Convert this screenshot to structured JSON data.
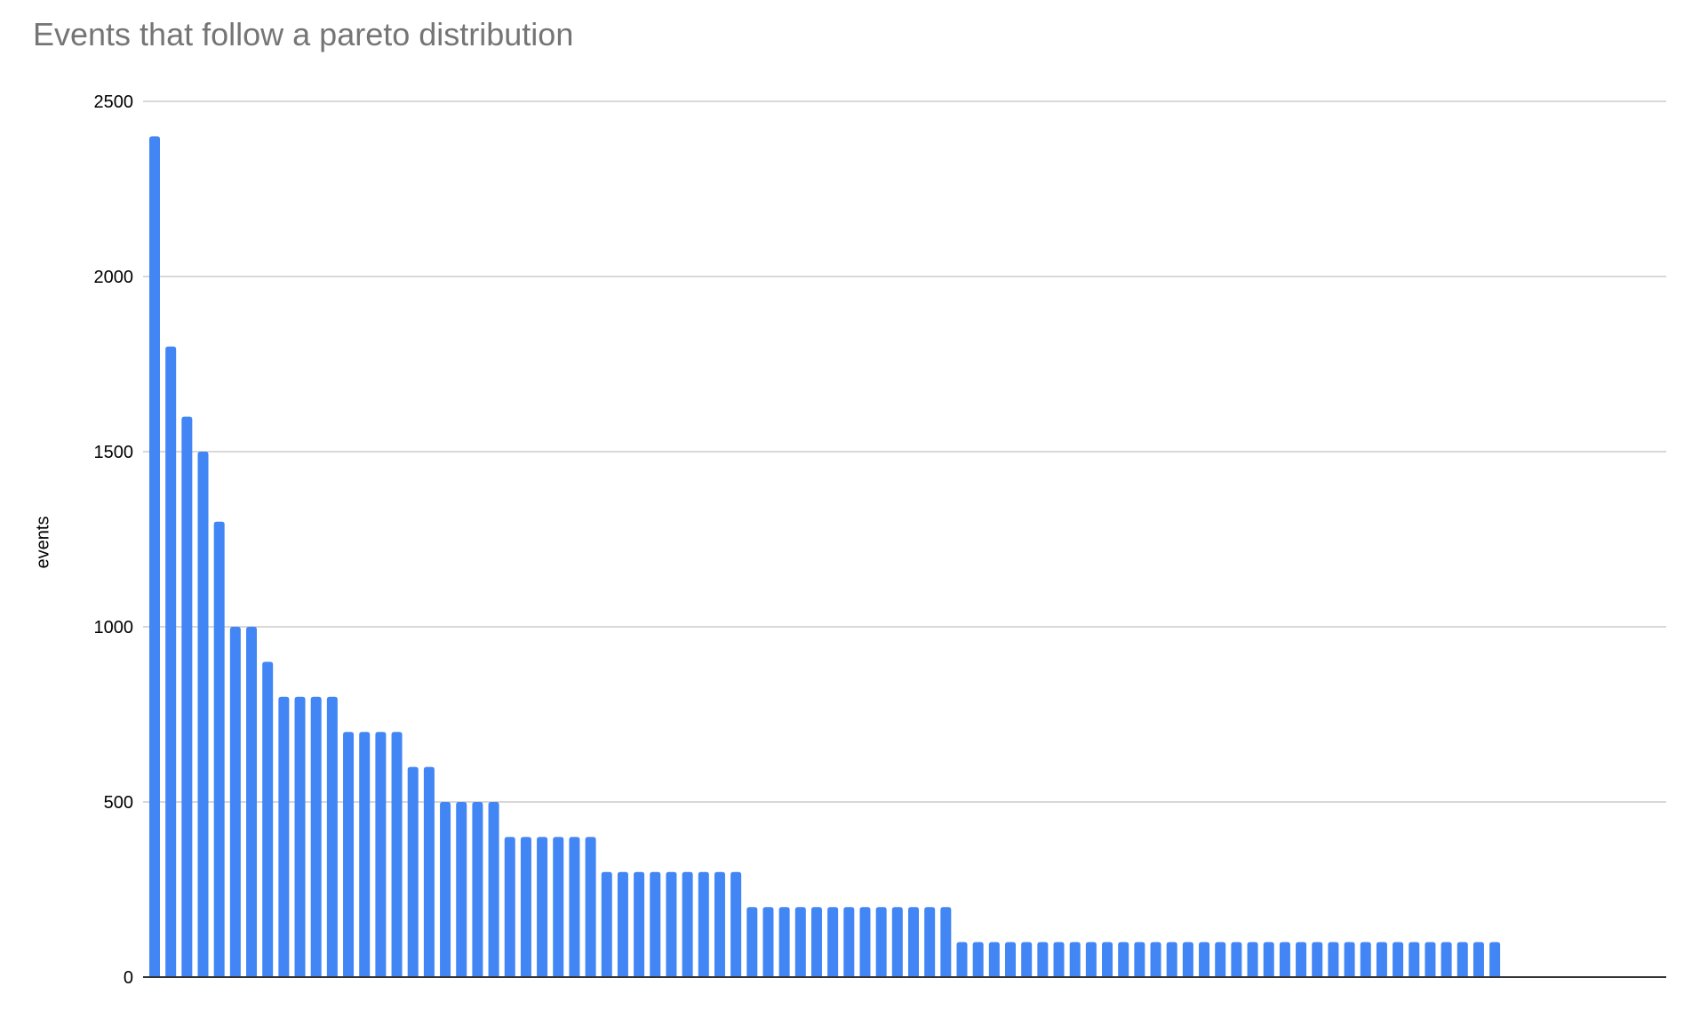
{
  "chart_data": {
    "type": "bar",
    "title": "Events that follow a pareto distribution",
    "xlabel": "",
    "ylabel": "events",
    "ylim": [
      0,
      2500
    ],
    "yticks": [
      "0",
      "500",
      "1000",
      "1500",
      "2000",
      "2500"
    ],
    "grid": true,
    "legend": "none",
    "bar_color": "#4285f4",
    "values": [
      2400,
      1800,
      1600,
      1500,
      1300,
      1000,
      1000,
      900,
      800,
      800,
      800,
      800,
      700,
      700,
      700,
      700,
      600,
      600,
      500,
      500,
      500,
      500,
      400,
      400,
      400,
      400,
      400,
      400,
      300,
      300,
      300,
      300,
      300,
      300,
      300,
      300,
      300,
      200,
      200,
      200,
      200,
      200,
      200,
      200,
      200,
      200,
      200,
      200,
      200,
      200,
      100,
      100,
      100,
      100,
      100,
      100,
      100,
      100,
      100,
      100,
      100,
      100,
      100,
      100,
      100,
      100,
      100,
      100,
      100,
      100,
      100,
      100,
      100,
      100,
      100,
      100,
      100,
      100,
      100,
      100,
      100,
      100,
      100,
      100
    ]
  }
}
